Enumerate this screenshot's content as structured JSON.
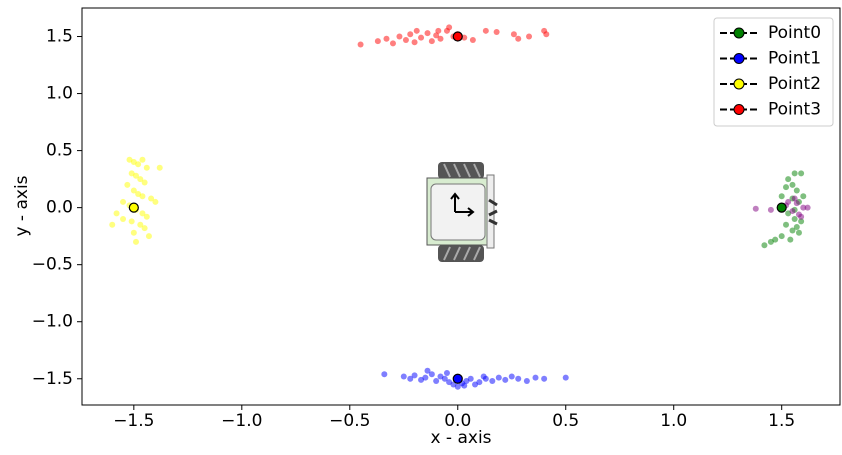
{
  "chart_data": {
    "type": "scatter",
    "xlabel": "x - axis",
    "ylabel": "y - axis",
    "xlim": [
      -1.74,
      1.77
    ],
    "ylim": [
      -1.73,
      1.75
    ],
    "xticks": [
      {
        "value": -1.5,
        "label": "−1.5"
      },
      {
        "value": -1.0,
        "label": "−1.0"
      },
      {
        "value": -0.5,
        "label": "−0.5"
      },
      {
        "value": 0,
        "label": "0.0"
      },
      0.5,
      {
        "value": 1.0,
        "label": "1.0"
      },
      1.5
    ],
    "yticks": [
      {
        "value": 1.5,
        "label": "1.5"
      },
      {
        "value": 1.0,
        "label": "1.0"
      },
      0.5,
      {
        "value": 0,
        "label": "0.0"
      },
      {
        "value": -0.5,
        "label": "−0.5"
      },
      {
        "value": -1.0,
        "label": "−1.0"
      },
      {
        "value": -1.5,
        "label": "−1.5"
      }
    ],
    "legend": "upper right",
    "series": [
      {
        "name": "Point0",
        "color": "#008000",
        "center": [
          1.5,
          0
        ],
        "x": [
          1.53,
          1.56,
          1.59,
          1.55,
          1.57,
          1.5,
          1.55,
          1.58,
          1.53,
          1.56,
          1.59,
          1.52,
          1.55,
          1.58,
          1.5,
          1.54,
          1.45,
          1.42,
          1.47,
          1.56,
          1.6,
          1.52,
          1.57
        ],
        "y": [
          0.25,
          0.3,
          0.3,
          0.2,
          0.15,
          0.1,
          0.08,
          0.05,
          -0.05,
          -0.1,
          -0.12,
          -0.15,
          -0.2,
          -0.22,
          -0.25,
          -0.28,
          -0.3,
          -0.33,
          -0.28,
          -0.02,
          0.1,
          0.18,
          -0.17
        ]
      },
      {
        "name": "Point1",
        "color": "#0000ff",
        "center": [
          0,
          -1.5
        ],
        "x": [
          -0.34,
          -0.25,
          -0.22,
          -0.2,
          -0.17,
          -0.15,
          -0.12,
          -0.1,
          -0.08,
          -0.06,
          -0.04,
          -0.02,
          0.0,
          0.02,
          0.04,
          0.06,
          0.08,
          0.1,
          0.13,
          0.16,
          0.19,
          0.22,
          0.25,
          0.28,
          0.32,
          0.36,
          0.4,
          0.5,
          -0.14,
          -0.05,
          0.03,
          0.12
        ],
        "y": [
          -1.46,
          -1.48,
          -1.5,
          -1.47,
          -1.51,
          -1.49,
          -1.46,
          -1.52,
          -1.48,
          -1.5,
          -1.53,
          -1.55,
          -1.57,
          -1.54,
          -1.52,
          -1.5,
          -1.55,
          -1.53,
          -1.5,
          -1.52,
          -1.49,
          -1.51,
          -1.48,
          -1.5,
          -1.52,
          -1.49,
          -1.5,
          -1.49,
          -1.43,
          -1.45,
          -1.56,
          -1.48
        ]
      },
      {
        "name": "Point2",
        "color": "#ffff00",
        "center": [
          -1.5,
          0
        ],
        "x": [
          -1.52,
          -1.5,
          -1.48,
          -1.46,
          -1.44,
          -1.51,
          -1.49,
          -1.47,
          -1.45,
          -1.53,
          -1.5,
          -1.48,
          -1.46,
          -1.42,
          -1.4,
          -1.55,
          -1.52,
          -1.49,
          -1.46,
          -1.44,
          -1.58,
          -1.55,
          -1.51,
          -1.47,
          -1.45,
          -1.6,
          -1.5,
          -1.43,
          -1.38,
          -1.49
        ],
        "y": [
          0.42,
          0.4,
          0.38,
          0.42,
          0.35,
          0.3,
          0.28,
          0.25,
          0.22,
          0.2,
          0.15,
          0.12,
          0.1,
          0.08,
          0.05,
          0.05,
          0.02,
          -0.02,
          -0.05,
          -0.08,
          -0.05,
          -0.1,
          -0.12,
          -0.15,
          -0.18,
          -0.15,
          -0.22,
          -0.25,
          0.35,
          -0.3
        ]
      },
      {
        "name": "Point3",
        "color": "#ff0000",
        "center": [
          0,
          1.5
        ],
        "x": [
          -0.45,
          -0.37,
          -0.33,
          -0.3,
          -0.27,
          -0.24,
          -0.22,
          -0.2,
          -0.17,
          -0.14,
          -0.12,
          -0.1,
          -0.08,
          -0.05,
          -0.02,
          0.0,
          0.03,
          0.07,
          0.13,
          0.18,
          0.26,
          0.33,
          0.4,
          -0.19,
          -0.09,
          -0.04,
          0.28,
          0.41
        ],
        "y": [
          1.43,
          1.46,
          1.48,
          1.44,
          1.5,
          1.47,
          1.52,
          1.45,
          1.49,
          1.53,
          1.46,
          1.51,
          1.48,
          1.55,
          1.5,
          1.52,
          1.49,
          1.47,
          1.55,
          1.54,
          1.52,
          1.5,
          1.55,
          1.55,
          1.55,
          1.58,
          1.48,
          1.52
        ]
      },
      {
        "color": "#800080",
        "x": [
          1.38,
          1.45,
          1.52,
          1.55,
          1.57,
          1.6,
          1.62,
          1.58,
          1.53,
          1.56,
          1.59
        ],
        "y": [
          -0.01,
          -0.02,
          0.02,
          -0.03,
          0.04,
          0.0,
          0.0,
          -0.06,
          0.05,
          0.08,
          -0.08
        ]
      }
    ]
  }
}
